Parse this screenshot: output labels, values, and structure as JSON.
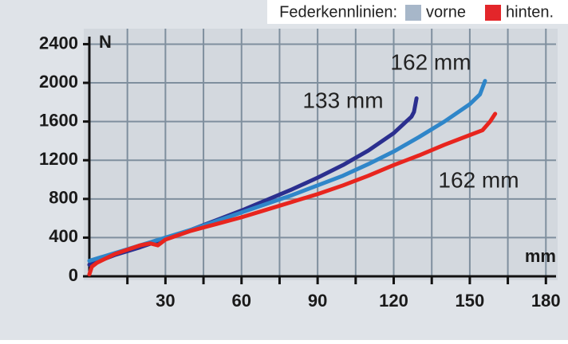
{
  "chart_data": {
    "type": "line",
    "legend": {
      "title": "Federkennlinien:",
      "items": [
        {
          "label": "vorne",
          "color": "#a7b7c9"
        },
        {
          "label": "hinten.",
          "color": "#e3262a"
        }
      ]
    },
    "y_label": "N",
    "x_label": "mm",
    "xlim": [
      0,
      184
    ],
    "ylim": [
      0,
      2560
    ],
    "xticks": [
      30,
      60,
      90,
      120,
      150,
      180
    ],
    "xminor": [
      15,
      45,
      75,
      105,
      135,
      165
    ],
    "yticks": [
      0,
      400,
      800,
      1200,
      1600,
      2000,
      2400
    ],
    "grid": true,
    "series": [
      {
        "name": "133 mm",
        "color": "#2b2f8f",
        "x": [
          0,
          10,
          20,
          30,
          40,
          50,
          60,
          70,
          80,
          90,
          100,
          110,
          120,
          127,
          128,
          129
        ],
        "values": [
          120,
          220,
          300,
          390,
          480,
          580,
          680,
          790,
          900,
          1020,
          1150,
          1300,
          1480,
          1650,
          1700,
          1840
        ]
      },
      {
        "name": "162 mm",
        "color": "#2f86c9",
        "x": [
          0,
          10,
          20,
          30,
          40,
          50,
          60,
          70,
          80,
          90,
          100,
          110,
          120,
          130,
          140,
          150,
          154,
          155,
          156
        ],
        "values": [
          160,
          240,
          320,
          400,
          480,
          570,
          660,
          750,
          840,
          940,
          1040,
          1160,
          1290,
          1440,
          1600,
          1780,
          1880,
          1950,
          2020
        ]
      },
      {
        "name": "162 mm",
        "color": "#e8251e",
        "x": [
          0,
          1,
          3,
          10,
          20,
          24,
          27,
          30,
          40,
          50,
          60,
          70,
          80,
          90,
          100,
          110,
          120,
          130,
          140,
          150,
          155,
          158,
          160
        ],
        "values": [
          20,
          100,
          140,
          230,
          320,
          340,
          320,
          380,
          470,
          540,
          610,
          690,
          770,
          850,
          940,
          1040,
          1150,
          1250,
          1360,
          1460,
          1510,
          1600,
          1680
        ]
      }
    ]
  }
}
